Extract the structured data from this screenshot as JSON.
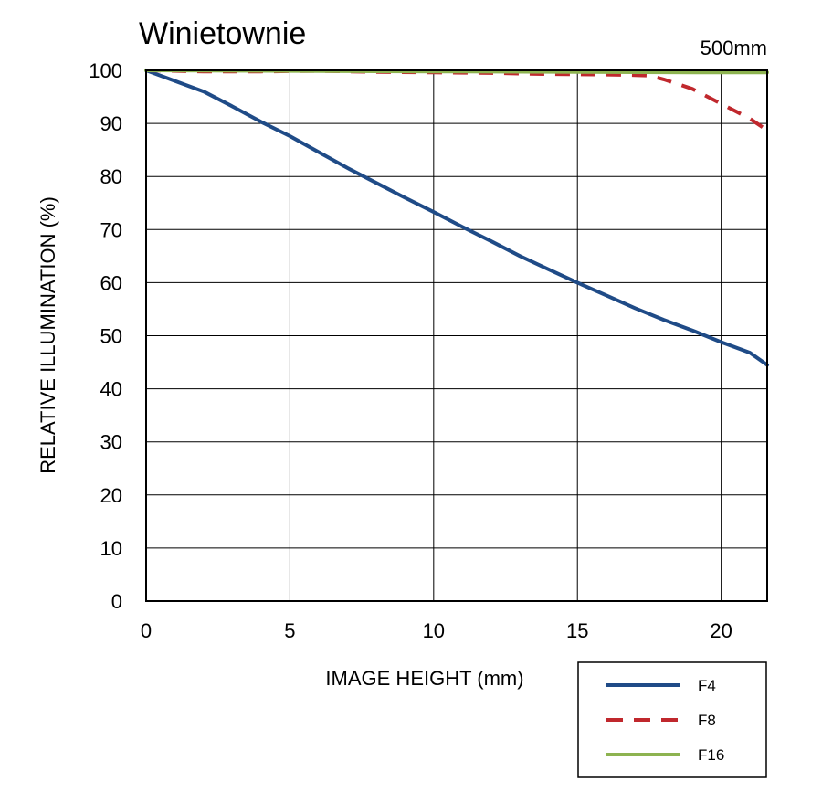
{
  "chart_data": {
    "type": "line",
    "title": "Winietownie",
    "subtitle": "500mm",
    "xlabel": "IMAGE HEIGHT (mm)",
    "ylabel": "RELATIVE ILLUMINATION (%)",
    "xlim": [
      0,
      21.6
    ],
    "ylim": [
      0,
      100
    ],
    "xticks": [
      0,
      5,
      10,
      15,
      20
    ],
    "yticks": [
      0,
      10,
      20,
      30,
      40,
      50,
      60,
      70,
      80,
      90,
      100
    ],
    "grid": true,
    "legend_position": "bottom-right",
    "series": [
      {
        "name": "F4",
        "color": "#1f4b87",
        "style": "solid",
        "x": [
          0,
          1,
          2,
          3,
          4,
          5,
          6,
          7,
          8,
          9,
          10,
          11,
          12,
          13,
          14,
          15,
          16,
          17,
          18,
          19,
          20,
          21,
          21.6
        ],
        "y": [
          100,
          98,
          96,
          93.2,
          90.3,
          87.6,
          84.6,
          81.6,
          78.8,
          76,
          73.3,
          70.5,
          67.8,
          65,
          62.5,
          60,
          57.6,
          55.2,
          53,
          51,
          48.8,
          46.8,
          44.5
        ]
      },
      {
        "name": "F8",
        "color": "#c0282d",
        "style": "dashed",
        "x": [
          0,
          2,
          4,
          6,
          8,
          10,
          12,
          14,
          16,
          17,
          17.5,
          18,
          19,
          20,
          21,
          21.6
        ],
        "y": [
          100,
          99.8,
          99.8,
          99.9,
          99.7,
          99.6,
          99.5,
          99.3,
          99.2,
          99.1,
          99,
          98.3,
          96.5,
          93.7,
          90.9,
          88.7
        ]
      },
      {
        "name": "F16",
        "color": "#8db350",
        "style": "solid",
        "x": [
          0,
          5,
          10,
          15,
          20,
          21.6
        ],
        "y": [
          100,
          99.9,
          99.8,
          99.7,
          99.6,
          99.6
        ]
      }
    ]
  }
}
